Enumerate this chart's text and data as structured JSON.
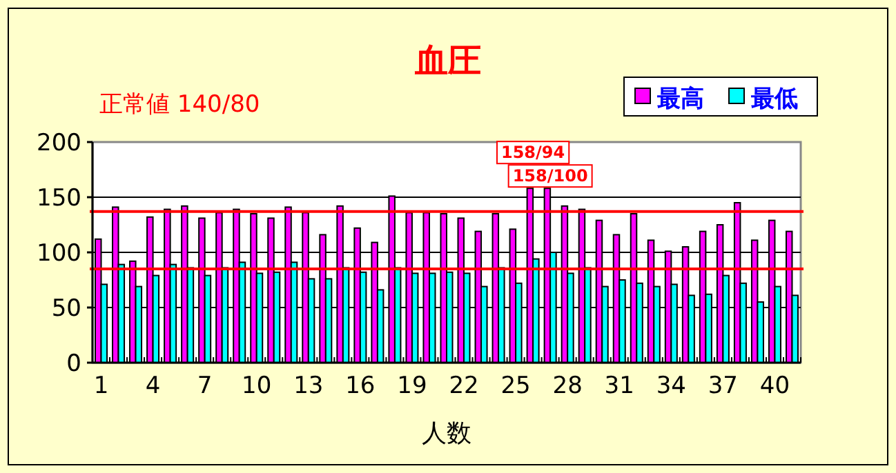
{
  "chart_data": {
    "type": "bar",
    "title": "血圧",
    "subtitle": "正常値 140/80",
    "xlabel": "人数",
    "categories": [
      "1",
      null,
      null,
      "4",
      null,
      null,
      "7",
      null,
      null,
      "10",
      null,
      null,
      "13",
      null,
      null,
      "16",
      null,
      null,
      "19",
      null,
      null,
      "22",
      null,
      null,
      "25",
      null,
      null,
      "28",
      null,
      null,
      "31",
      null,
      null,
      "34",
      null,
      null,
      "37",
      null,
      null,
      "40",
      null
    ],
    "series": [
      {
        "name": "最高",
        "color": "#ff00ff",
        "values": [
          112,
          141,
          92,
          132,
          139,
          142,
          131,
          136,
          139,
          135,
          131,
          141,
          136,
          116,
          142,
          122,
          109,
          151,
          136,
          136,
          135,
          131,
          119,
          135,
          121,
          158,
          158,
          142,
          139,
          129,
          116,
          135,
          111,
          101,
          105,
          119,
          125,
          145,
          111,
          129,
          119
        ],
        "value_labels": [
          null,
          null,
          null,
          null,
          null,
          null,
          null,
          null,
          null,
          null,
          null,
          null,
          null,
          null,
          null,
          null,
          null,
          null,
          null,
          null,
          null,
          null,
          null,
          null,
          null,
          "158/94",
          "158/100",
          null,
          null,
          null,
          null,
          null,
          null,
          null,
          null,
          null,
          null,
          null,
          null,
          null,
          null
        ]
      },
      {
        "name": "最低",
        "color": "#00ffff",
        "values": [
          71,
          89,
          69,
          79,
          89,
          86,
          79,
          86,
          91,
          81,
          82,
          91,
          76,
          76,
          86,
          82,
          66,
          86,
          81,
          81,
          82,
          81,
          69,
          86,
          72,
          94,
          100,
          81,
          86,
          69,
          75,
          72,
          69,
          71,
          61,
          62,
          79,
          72,
          55,
          69,
          61
        ]
      }
    ],
    "ylim": [
      0,
      200
    ],
    "yticks": [
      0,
      50,
      100,
      150,
      200
    ],
    "grid": "y",
    "legend": "top right",
    "ref_lines": [
      {
        "axis": "y",
        "value": 137,
        "color": "#ff0000"
      },
      {
        "axis": "y",
        "value": 85,
        "color": "#ff0000"
      }
    ]
  }
}
